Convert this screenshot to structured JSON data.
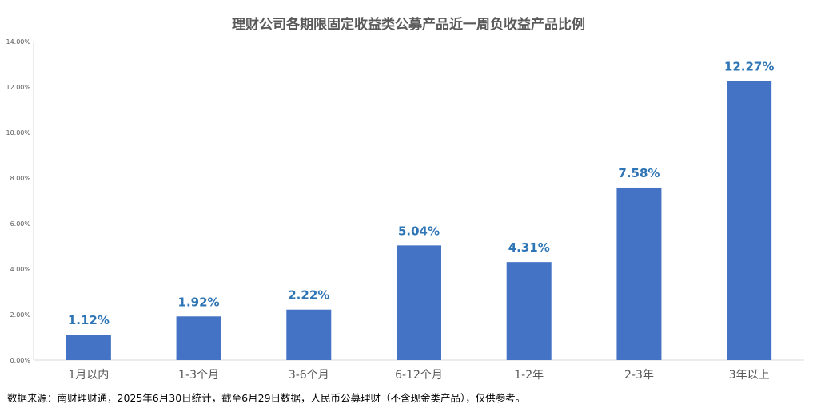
{
  "chart_data": {
    "type": "bar",
    "title": "理财公司各期限固定收益类公募产品近一周负收益产品比例",
    "categories": [
      "1月以内",
      "1-3个月",
      "3-6个月",
      "6-12个月",
      "1-2年",
      "2-3年",
      "3年以上"
    ],
    "values": [
      1.12,
      1.92,
      2.22,
      5.04,
      4.31,
      7.58,
      12.27
    ],
    "data_labels": [
      "1.12%",
      "1.92%",
      "2.22%",
      "5.04%",
      "4.31%",
      "7.58%",
      "12.27%"
    ],
    "y_ticks": [
      0,
      2,
      4,
      6,
      8,
      10,
      12,
      14
    ],
    "y_tick_labels": [
      "0.00%",
      "2.00%",
      "4.00%",
      "6.00%",
      "8.00%",
      "10.00%",
      "12.00%",
      "14.00%"
    ],
    "ylim": [
      0,
      14
    ],
    "xlabel": "",
    "ylabel": "",
    "grid": false,
    "legend": "none"
  },
  "colors": {
    "bar": "#4472C4",
    "data_label": "#2E75B6",
    "title": "#595959",
    "axis_text": "#595959",
    "axis_line": "#D9D9D9"
  },
  "footnote": "数据来源：南财理财通，2025年6月30日统计，截至6月29日数据，人民币公募理财（不含现金类产品），仅供参考。"
}
